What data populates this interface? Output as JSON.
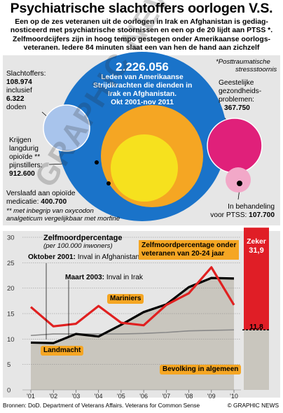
{
  "title": "Psychiatrische slachtoffers oorlogen V.S.",
  "intro": [
    "Een op de zes veteranen uit de oorlogen in Irak en Afghanistan is gediag-",
    "nosticeerd met psychiatrische stoornissen en een op de 20 lijdt aan PTSS *.",
    "Zelfmoordcijfers zijn in hoog tempo gestegen onder Amerikaanse oorlogs-",
    "veteranen. Iedere 84 minuten slaat een van hen de hand aan zichzelf"
  ],
  "bubbles": {
    "total": {
      "value": "2.226.056",
      "lines": [
        "Leden van Amerikaanse",
        "Strijdkrachten die dienden in",
        "Irak en Afghanistan.",
        "Okt 2001-nov 2011"
      ],
      "color": "#1a73c9"
    },
    "victims": {
      "label": "Slachtoffers:",
      "value1": "108.974",
      "label2": "inclusief",
      "value2": "6.322",
      "label3": "doden",
      "color": "#a8c4ec"
    },
    "painkillers": {
      "lines": [
        "Krijgen",
        "langdurig",
        "opioïde **",
        "pijnstillers:"
      ],
      "value": "912.600",
      "color": "#f5a623"
    },
    "addicted": {
      "label": "Verslaafd aan opioïde",
      "label2": "medicatie:",
      "value": "400.700",
      "color": "#f6e11e"
    },
    "mental": {
      "lines": [
        "Geestelijke",
        "gezondheids-",
        "problemen:"
      ],
      "value": "367.750",
      "color": "#e0207a"
    },
    "ptss": {
      "lines": [
        "In behandeling",
        "voor PTSS:"
      ],
      "value": "107.700",
      "color": "#f2a8c8"
    }
  },
  "notes": {
    "ptss_note": [
      "*Posttraumatische",
      "stressstoornis"
    ],
    "opioid_note": [
      "** met inbegrip van oxycodon",
      "analgeticum vergelijkbaar met morfine"
    ]
  },
  "chart_data": {
    "type": "line",
    "title": "Zelfmoordpercentage",
    "subtitle": "(per 100.000 inwoners)",
    "x": [
      "'01",
      "'02",
      "'03",
      "'04",
      "'05",
      "'06",
      "'07",
      "'08",
      "'09",
      "'10"
    ],
    "ylim": [
      0,
      30
    ],
    "yticks": [
      0,
      5,
      10,
      15,
      20,
      25,
      30
    ],
    "series": [
      {
        "name": "Bevolking in algemeen",
        "values": [
          10.7,
          11,
          11,
          11,
          11,
          11.1,
          11.3,
          11.6,
          11.7,
          11.8
        ],
        "color": "#888888"
      },
      {
        "name": "Landmacht",
        "values": [
          9.3,
          9.2,
          11,
          10.5,
          12.8,
          15.3,
          16.8,
          20.2,
          22,
          21.9
        ],
        "color": "#000000"
      },
      {
        "name": "Mariniers",
        "values": [
          16.3,
          12.5,
          13,
          16.5,
          13.2,
          12.7,
          16.7,
          19,
          24.1,
          16.7
        ],
        "color": "#e02020"
      }
    ],
    "annotations": {
      "oktober_2001": "Oktober 2001:",
      "oktober_2001_text": "Inval in Afghanistan",
      "maart_2003": "Maart 2003:",
      "maart_2003_text": "Inval in Irak",
      "young_vets": [
        "Zelfmoordpercentage onder",
        "veteranen van 20-24 jaar"
      ]
    },
    "side_bar": {
      "label": "Zeker",
      "value": "31,9",
      "value_num": 31.9,
      "base_value": "11,8",
      "base_num": 11.8,
      "color": "#e01e26"
    },
    "labels": {
      "mariniers": "Mariniers",
      "landmacht": "Landmacht",
      "bevolking": "Bevolking in algemeen"
    },
    "colors": {
      "fill": "#c9c6be",
      "accent": "#e01e26",
      "callout": "#f5a623"
    }
  },
  "footer": {
    "source": "Bronnen: DoD. Department of Veterans Affairs. Veterans for Common Sense",
    "credit": "© GRAPHIC NEWS"
  },
  "watermark": "GRAPHIC NEWS"
}
